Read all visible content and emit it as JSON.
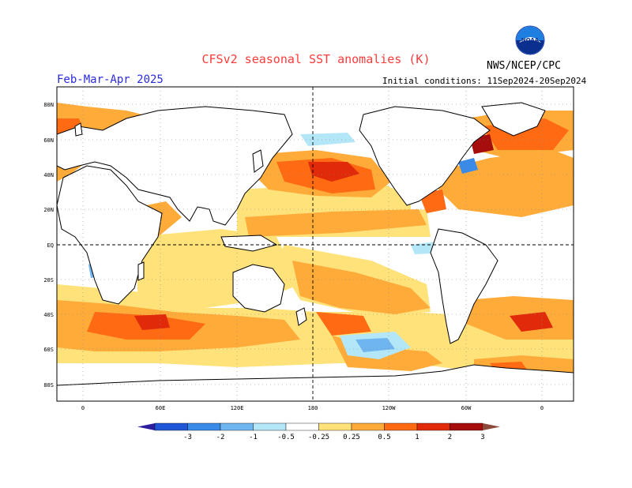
{
  "header": {
    "title": "CFSv2 seasonal SST anomalies (K)",
    "season": "Feb-Mar-Apr 2025",
    "initial_conditions": "Initial conditions: 11Sep2024-20Sep2024",
    "agency": "NWS/NCEP/CPC",
    "logo_text": "NOAA"
  },
  "axes": {
    "lat_labels": [
      "80N",
      "60N",
      "40N",
      "20N",
      "EQ",
      "20S",
      "40S",
      "60S",
      "80S"
    ],
    "lon_labels": [
      "0",
      "60E",
      "120E",
      "180",
      "120W",
      "60W",
      "0"
    ]
  },
  "colorbar": {
    "labels": [
      "-3",
      "-2",
      "-1",
      "-0.5",
      "-0.25",
      "0.25",
      "0.5",
      "1",
      "2",
      "3"
    ],
    "colors": [
      "#2d1e9e",
      "#1f56d8",
      "#3a8ae8",
      "#6fb6f0",
      "#b3e6f7",
      "#ffffff",
      "#ffe27a",
      "#ffab3a",
      "#ff6a12",
      "#e02a0a",
      "#a60d0d",
      "#8c4a3a"
    ]
  },
  "map_colors": {
    "land": "#ffffff",
    "coast": "#000000",
    "weak_warm": "#ffe27a",
    "warm": "#ffab3a",
    "warmer": "#ff6a12",
    "hot": "#e02a0a",
    "hottest": "#a60d0d",
    "weak_cool": "#b3e6f7",
    "cool": "#6fb6f0",
    "cooler": "#3a8ae8"
  }
}
